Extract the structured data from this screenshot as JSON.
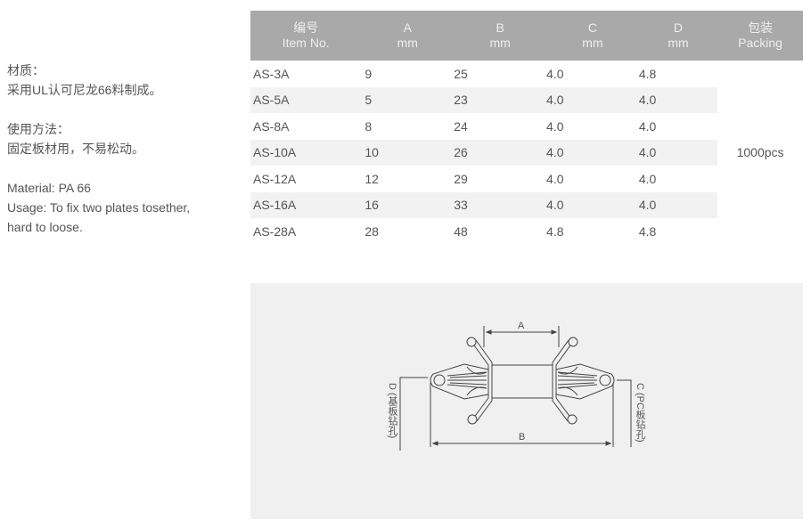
{
  "description": {
    "material_cn_label": "材质：",
    "material_cn": "采用UL认可尼龙66料制成。",
    "usage_cn_label": "使用方法：",
    "usage_cn": "固定板材用，不易松动。",
    "material_en": "Material: PA 66",
    "usage_en_1": "Usage: To fix two plates tosether,",
    "usage_en_2": "hard to loose."
  },
  "table": {
    "headers": [
      [
        "编号",
        "Item No."
      ],
      [
        "A",
        "mm"
      ],
      [
        "B",
        "mm"
      ],
      [
        "C",
        "mm"
      ],
      [
        "D",
        "mm"
      ],
      [
        "包装",
        "Packing"
      ]
    ],
    "rows": [
      [
        "AS-3A",
        "9",
        "25",
        "4.0",
        "4.8"
      ],
      [
        "AS-5A",
        "5",
        "23",
        "4.0",
        "4.0"
      ],
      [
        "AS-8A",
        "8",
        "24",
        "4.0",
        "4.0"
      ],
      [
        "AS-10A",
        "10",
        "26",
        "4.0",
        "4.0"
      ],
      [
        "AS-12A",
        "12",
        "29",
        "4.0",
        "4.0"
      ],
      [
        "AS-16A",
        "16",
        "33",
        "4.0",
        "4.0"
      ],
      [
        "AS-28A",
        "28",
        "48",
        "4.8",
        "4.8"
      ]
    ],
    "packing": "1000pcs"
  },
  "diagram": {
    "label_a": "A",
    "label_b": "B",
    "label_c": "C (PC板钻孔)",
    "label_d": "D (基板钻孔)"
  },
  "colors": {
    "header_bg": "#a9a9a9",
    "row_alt": "#f2f2f2",
    "panel_bg": "#f0f0f0"
  }
}
